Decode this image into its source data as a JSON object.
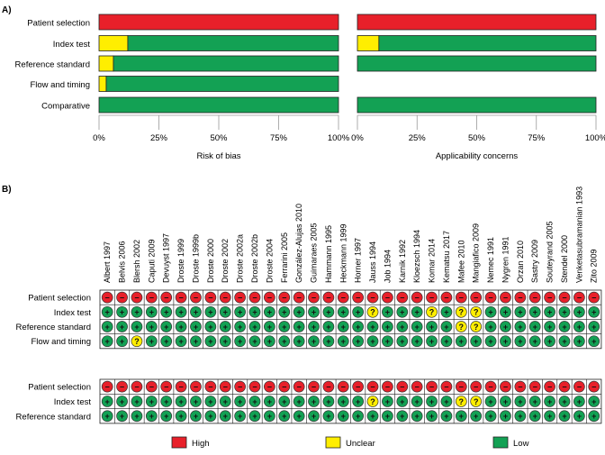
{
  "panel_a_label": "A)",
  "panel_b_label": "B)",
  "colors": {
    "high": "#e8202a",
    "unclear": "#ffee00",
    "low": "#13a154",
    "frame": "#222222"
  },
  "chart_data": [
    {
      "type": "bar",
      "orientation": "horizontal",
      "stacked": true,
      "title": "",
      "xlabel": "Risk of bias",
      "ylabel": "",
      "xlim": [
        0,
        100
      ],
      "ticks": [
        "0%",
        "25%",
        "50%",
        "75%",
        "100%"
      ],
      "categories": [
        "Patient selection",
        "Index test",
        "Reference standard",
        "Flow and timing",
        "Comparative"
      ],
      "series": [
        {
          "name": "Low",
          "color": "low",
          "values": [
            0,
            88,
            94,
            97,
            100
          ]
        },
        {
          "name": "Unclear",
          "color": "unclear",
          "values": [
            0,
            12,
            6,
            3,
            0
          ]
        },
        {
          "name": "High",
          "color": "high",
          "values": [
            100,
            0,
            0,
            0,
            0
          ]
        }
      ]
    },
    {
      "type": "bar",
      "orientation": "horizontal",
      "stacked": true,
      "title": "",
      "xlabel": "Applicability concerns",
      "ylabel": "",
      "xlim": [
        0,
        100
      ],
      "ticks": [
        "0%",
        "25%",
        "50%",
        "75%",
        "100%"
      ],
      "categories": [
        "Patient selection",
        "Index test",
        "Reference standard",
        "Flow and timing",
        "Comparative"
      ],
      "series": [
        {
          "name": "Low",
          "color": "low",
          "values": [
            0,
            91,
            100,
            null,
            100
          ]
        },
        {
          "name": "Unclear",
          "color": "unclear",
          "values": [
            0,
            9,
            0,
            null,
            0
          ]
        },
        {
          "name": "High",
          "color": "high",
          "values": [
            100,
            0,
            0,
            null,
            0
          ]
        }
      ]
    },
    {
      "type": "table",
      "title": "Risk of bias summary",
      "studies": [
        "Albert 1997",
        "Belvis 2006",
        "Blersh 2002",
        "Caputi 2009",
        "Devuyst 1997",
        "Droste 1999",
        "Droste 1999b",
        "Droste 2000",
        "Droste 2002",
        "Droste 2002a",
        "Droste 2002b",
        "Droste 2004",
        "Ferrarini 2005",
        "González-Alujas 2010",
        "Guimaraes 2005",
        "Hammann 1995",
        "Heckmann 1999",
        "Horner 1997",
        "Jauss 1994",
        "Job 1994",
        "Karnik 1992",
        "Kloezsch 1994",
        "Komar 2014",
        "Kematsu 2017",
        "Mafee 2010",
        "Mangiafico 2009",
        "Nemec 1991",
        "Nygren 1991",
        "Orzan 2010",
        "Sastry 2009",
        "Souteyrand 2005",
        "Stendel 2000",
        "Venketasubramanian 1993",
        "Zito 2009"
      ],
      "row_labels": [
        "Patient selection",
        "Index test",
        "Reference standard",
        "Flow and timing"
      ],
      "cells": [
        [
          "high",
          "high",
          "high",
          "high",
          "high",
          "high",
          "high",
          "high",
          "high",
          "high",
          "high",
          "high",
          "high",
          "high",
          "high",
          "high",
          "high",
          "high",
          "high",
          "high",
          "high",
          "high",
          "high",
          "high",
          "high",
          "high",
          "high",
          "high",
          "high",
          "high",
          "high",
          "high",
          "high",
          "high"
        ],
        [
          "low",
          "low",
          "low",
          "low",
          "low",
          "low",
          "low",
          "low",
          "low",
          "low",
          "low",
          "low",
          "low",
          "low",
          "low",
          "low",
          "low",
          "low",
          "unclear",
          "low",
          "low",
          "low",
          "unclear",
          "low",
          "unclear",
          "unclear",
          "low",
          "low",
          "low",
          "low",
          "low",
          "low",
          "low",
          "low"
        ],
        [
          "low",
          "low",
          "low",
          "low",
          "low",
          "low",
          "low",
          "low",
          "low",
          "low",
          "low",
          "low",
          "low",
          "low",
          "low",
          "low",
          "low",
          "low",
          "low",
          "low",
          "low",
          "low",
          "low",
          "low",
          "unclear",
          "unclear",
          "low",
          "low",
          "low",
          "low",
          "low",
          "low",
          "low",
          "low"
        ],
        [
          "low",
          "low",
          "unclear",
          "low",
          "low",
          "low",
          "low",
          "low",
          "low",
          "low",
          "low",
          "low",
          "low",
          "low",
          "low",
          "low",
          "low",
          "low",
          "low",
          "low",
          "low",
          "low",
          "low",
          "low",
          "low",
          "low",
          "low",
          "low",
          "low",
          "low",
          "low",
          "low",
          "low",
          "low"
        ]
      ]
    },
    {
      "type": "table",
      "title": "Applicability concerns summary",
      "studies": [
        "Albert 1997",
        "Belvis 2006",
        "Blersh 2002",
        "Caputi 2009",
        "Devuyst 1997",
        "Droste 1999",
        "Droste 1999b",
        "Droste 2000",
        "Droste 2002",
        "Droste 2002a",
        "Droste 2002b",
        "Droste 2004",
        "Ferrarini 2005",
        "González-Alujas 2010",
        "Guimaraes 2005",
        "Hammann 1995",
        "Heckmann 1999",
        "Horner 1997",
        "Jauss 1994",
        "Job 1994",
        "Karnik 1992",
        "Kloezsch 1994",
        "Komar 2014",
        "Kematsu 2017",
        "Mafee 2010",
        "Mangiafico 2009",
        "Nemec 1991",
        "Nygren 1991",
        "Orzan 2010",
        "Sastry 2009",
        "Souteyrand 2005",
        "Stendel 2000",
        "Venketasubramanian 1993",
        "Zito 2009"
      ],
      "row_labels": [
        "Patient selection",
        "Index test",
        "Reference standard"
      ],
      "cells": [
        [
          "high",
          "high",
          "high",
          "high",
          "high",
          "high",
          "high",
          "high",
          "high",
          "high",
          "high",
          "high",
          "high",
          "high",
          "high",
          "high",
          "high",
          "high",
          "high",
          "high",
          "high",
          "high",
          "high",
          "high",
          "high",
          "high",
          "high",
          "high",
          "high",
          "high",
          "high",
          "high",
          "high",
          "high"
        ],
        [
          "low",
          "low",
          "low",
          "low",
          "low",
          "low",
          "low",
          "low",
          "low",
          "low",
          "low",
          "low",
          "low",
          "low",
          "low",
          "low",
          "low",
          "low",
          "unclear",
          "low",
          "low",
          "low",
          "low",
          "low",
          "unclear",
          "unclear",
          "low",
          "low",
          "low",
          "low",
          "low",
          "low",
          "low",
          "low"
        ],
        [
          "low",
          "low",
          "low",
          "low",
          "low",
          "low",
          "low",
          "low",
          "low",
          "low",
          "low",
          "low",
          "low",
          "low",
          "low",
          "low",
          "low",
          "low",
          "low",
          "low",
          "low",
          "low",
          "low",
          "low",
          "low",
          "low",
          "low",
          "low",
          "low",
          "low",
          "low",
          "low",
          "low",
          "low"
        ]
      ]
    }
  ],
  "symbols": {
    "high": "−",
    "unclear": "?",
    "low": "+"
  },
  "legend": [
    {
      "label": "High",
      "color": "high"
    },
    {
      "label": "Unclear",
      "color": "unclear"
    },
    {
      "label": "Low",
      "color": "low"
    }
  ]
}
